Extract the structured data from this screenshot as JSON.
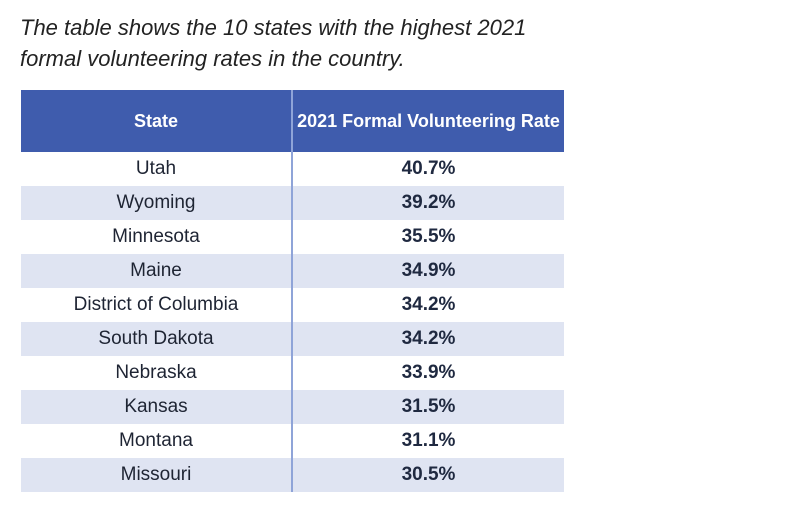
{
  "caption": "The table shows the 10 states with the highest 2021 formal volunteering rates in the country.",
  "colors": {
    "header_bg": "#3f5cad",
    "header_text": "#ffffff",
    "stripe": "#dfe4f2",
    "divider": "#8fa4d8"
  },
  "chart_data": {
    "type": "table",
    "columns": [
      "State",
      "2021 Formal Volunteering Rate"
    ],
    "rows": [
      {
        "state": "Utah",
        "rate": "40.7%",
        "value": 40.7
      },
      {
        "state": "Wyoming",
        "rate": "39.2%",
        "value": 39.2
      },
      {
        "state": "Minnesota",
        "rate": "35.5%",
        "value": 35.5
      },
      {
        "state": "Maine",
        "rate": "34.9%",
        "value": 34.9
      },
      {
        "state": "District of Columbia",
        "rate": "34.2%",
        "value": 34.2
      },
      {
        "state": "South Dakota",
        "rate": "34.2%",
        "value": 34.2
      },
      {
        "state": "Nebraska",
        "rate": "33.9%",
        "value": 33.9
      },
      {
        "state": "Kansas",
        "rate": "31.5%",
        "value": 31.5
      },
      {
        "state": "Montana",
        "rate": "31.1%",
        "value": 31.1
      },
      {
        "state": "Missouri",
        "rate": "30.5%",
        "value": 30.5
      }
    ]
  }
}
